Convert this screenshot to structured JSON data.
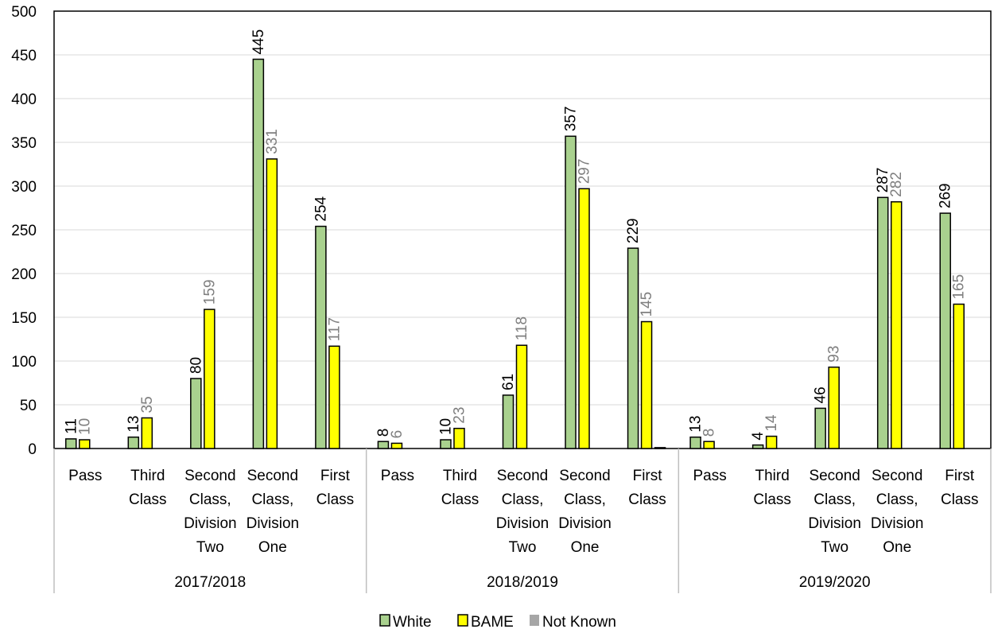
{
  "chart_data": {
    "type": "bar",
    "title": "",
    "xlabel": "",
    "ylabel": "",
    "ylim": [
      0,
      500
    ],
    "yticks": [
      0,
      50,
      100,
      150,
      200,
      250,
      300,
      350,
      400,
      450,
      500
    ],
    "grid": true,
    "legend_position": "bottom",
    "groups": [
      "2017/2018",
      "2018/2019",
      "2019/2020"
    ],
    "categories": [
      [
        "Pass"
      ],
      [
        "Third",
        "Class"
      ],
      [
        "Second",
        "Class,",
        "Division",
        "Two"
      ],
      [
        "Second",
        "Class,",
        "Division",
        "One"
      ],
      [
        "First",
        "Class"
      ]
    ],
    "series": [
      {
        "name": "White",
        "color": "#a9d18e",
        "label_color": "#000000",
        "values": [
          [
            11,
            13,
            80,
            445,
            254
          ],
          [
            8,
            10,
            61,
            357,
            229
          ],
          [
            13,
            4,
            46,
            287,
            269
          ]
        ]
      },
      {
        "name": "BAME",
        "color": "#ffff00",
        "label_color": "#7f7f7f",
        "values": [
          [
            10,
            35,
            159,
            331,
            117
          ],
          [
            6,
            23,
            118,
            297,
            145
          ],
          [
            8,
            14,
            93,
            282,
            165
          ]
        ]
      },
      {
        "name": "Not Known",
        "color": "#a6a6a6",
        "label_color": "#7f7f7f",
        "values": [
          [
            0,
            0,
            0,
            0,
            0
          ],
          [
            0,
            0,
            0,
            0,
            1
          ],
          [
            0,
            0,
            0,
            0,
            0
          ]
        ]
      }
    ],
    "data_labels": [
      {
        "series": 0,
        "group": 0,
        "category": 0,
        "text": "11"
      },
      {
        "series": 0,
        "group": 0,
        "category": 1,
        "text": "13"
      },
      {
        "series": 0,
        "group": 0,
        "category": 2,
        "text": "80"
      },
      {
        "series": 0,
        "group": 0,
        "category": 3,
        "text": "445"
      },
      {
        "series": 0,
        "group": 0,
        "category": 4,
        "text": "254"
      },
      {
        "series": 0,
        "group": 1,
        "category": 0,
        "text": "8"
      },
      {
        "series": 0,
        "group": 1,
        "category": 1,
        "text": "10"
      },
      {
        "series": 0,
        "group": 1,
        "category": 2,
        "text": "61"
      },
      {
        "series": 0,
        "group": 1,
        "category": 3,
        "text": "357"
      },
      {
        "series": 0,
        "group": 1,
        "category": 4,
        "text": "229"
      },
      {
        "series": 0,
        "group": 2,
        "category": 0,
        "text": "13"
      },
      {
        "series": 0,
        "group": 2,
        "category": 1,
        "text": "4"
      },
      {
        "series": 0,
        "group": 2,
        "category": 2,
        "text": "46"
      },
      {
        "series": 0,
        "group": 2,
        "category": 3,
        "text": "287"
      },
      {
        "series": 0,
        "group": 2,
        "category": 4,
        "text": "269"
      },
      {
        "series": 1,
        "group": 0,
        "category": 0,
        "text": "10"
      },
      {
        "series": 1,
        "group": 0,
        "category": 1,
        "text": "35"
      },
      {
        "series": 1,
        "group": 0,
        "category": 2,
        "text": "159"
      },
      {
        "series": 1,
        "group": 0,
        "category": 3,
        "text": "331"
      },
      {
        "series": 1,
        "group": 0,
        "category": 4,
        "text": "117"
      },
      {
        "series": 1,
        "group": 1,
        "category": 0,
        "text": "6"
      },
      {
        "series": 1,
        "group": 1,
        "category": 1,
        "text": "23"
      },
      {
        "series": 1,
        "group": 1,
        "category": 2,
        "text": "118"
      },
      {
        "series": 1,
        "group": 1,
        "category": 3,
        "text": "297"
      },
      {
        "series": 1,
        "group": 1,
        "category": 4,
        "text": "145"
      },
      {
        "series": 1,
        "group": 2,
        "category": 0,
        "text": "8"
      },
      {
        "series": 1,
        "group": 2,
        "category": 1,
        "text": "14"
      },
      {
        "series": 1,
        "group": 2,
        "category": 2,
        "text": "93"
      },
      {
        "series": 1,
        "group": 2,
        "category": 3,
        "text": "282"
      },
      {
        "series": 1,
        "group": 2,
        "category": 4,
        "text": "165"
      }
    ]
  }
}
